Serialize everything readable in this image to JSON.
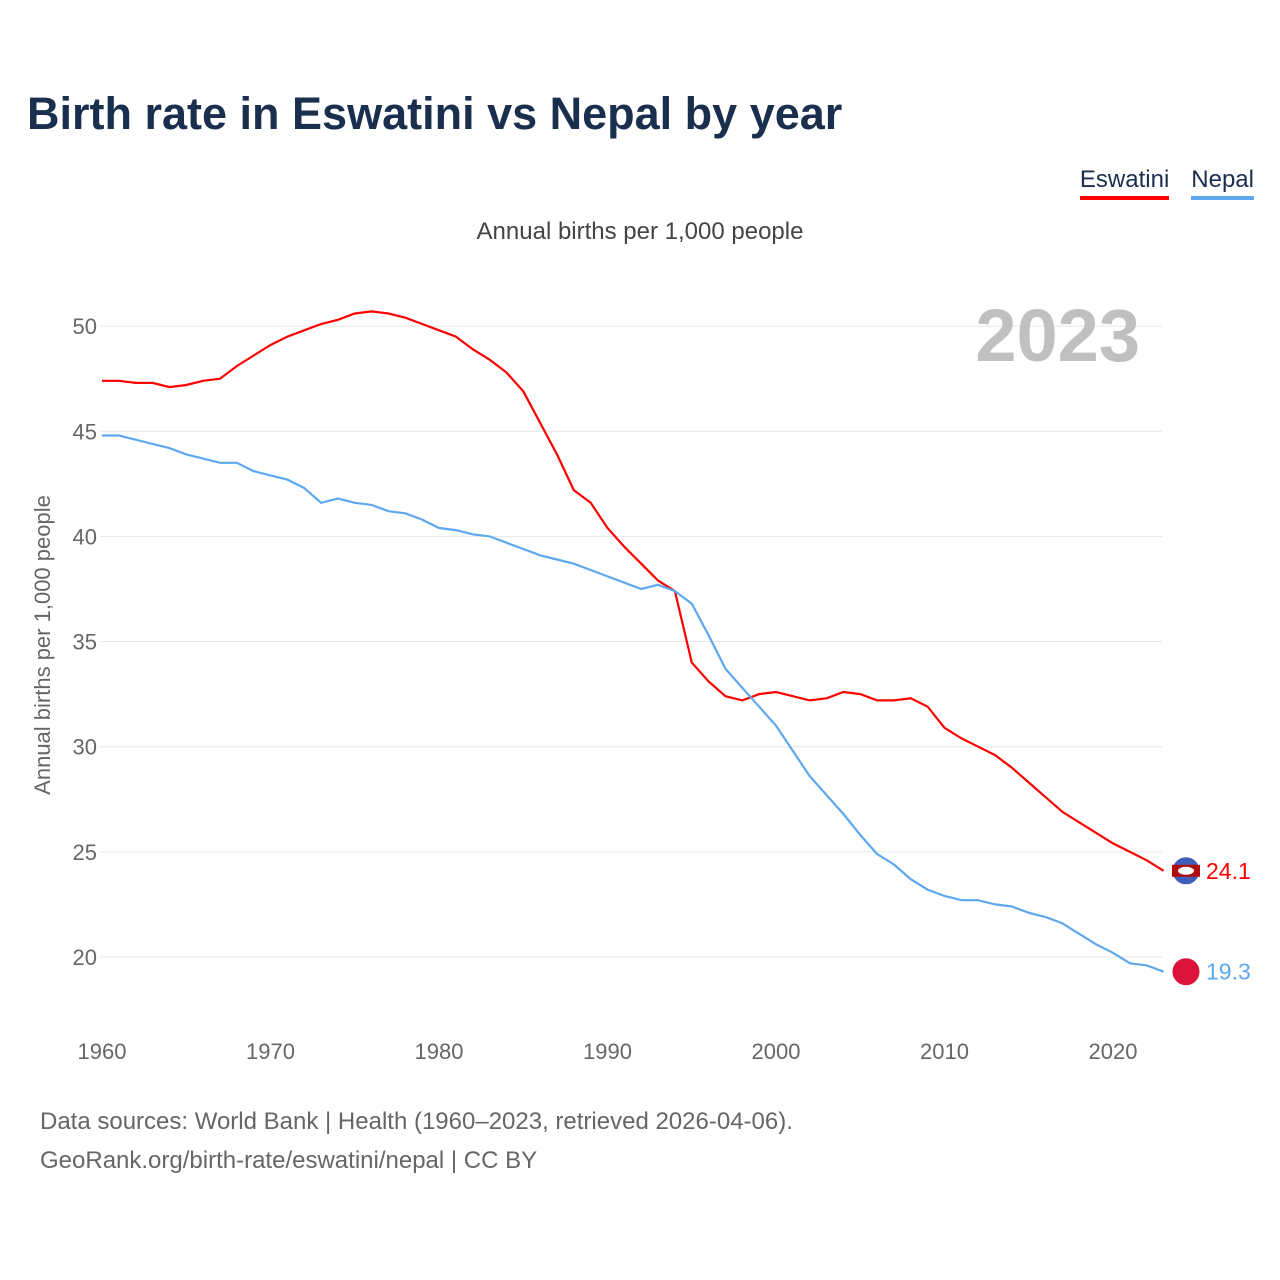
{
  "title": "Birth rate in Eswatini vs Nepal by year",
  "subtitle": "Annual births per 1,000 people",
  "source_line1": "Data sources: World Bank | Health (1960–2023, retrieved 2026-04-06).",
  "source_line2": "GeoRank.org/birth-rate/eswatini/nepal | CC BY",
  "chart_data": {
    "type": "line",
    "title": "Birth rate in Eswatini vs Nepal by year",
    "ylabel": "Annual births per 1,000 people",
    "xlabel": "",
    "year_label": "2023",
    "xlim": [
      1960,
      2023
    ],
    "ylim": [
      20,
      50
    ],
    "x_ticks": [
      1960,
      1970,
      1980,
      1990,
      2000,
      2010,
      2020
    ],
    "y_ticks": [
      20,
      25,
      30,
      35,
      40,
      45,
      50
    ],
    "grid": true,
    "legend_position": "top-right",
    "x_start": 1960,
    "series": [
      {
        "name": "Eswatini",
        "color": "#ff0000",
        "end_label": "24.1",
        "values": [
          47.4,
          47.4,
          47.3,
          47.3,
          47.1,
          47.2,
          47.4,
          47.5,
          48.1,
          48.6,
          49.1,
          49.5,
          49.8,
          50.1,
          50.3,
          50.6,
          50.7,
          50.6,
          50.4,
          50.1,
          49.8,
          49.5,
          48.9,
          48.4,
          47.8,
          46.9,
          45.4,
          43.9,
          42.2,
          41.6,
          40.4,
          39.5,
          38.7,
          37.9,
          37.4,
          34.0,
          33.1,
          32.4,
          32.2,
          32.5,
          32.6,
          32.4,
          32.2,
          32.3,
          32.6,
          32.5,
          32.2,
          32.2,
          32.3,
          31.9,
          30.9,
          30.4,
          30.0,
          29.6,
          29.0,
          28.3,
          27.6,
          26.9,
          26.4,
          25.9,
          25.4,
          25.0,
          24.6,
          24.1
        ]
      },
      {
        "name": "Nepal",
        "color": "#5ea8f0",
        "end_label": "19.3",
        "values": [
          44.8,
          44.8,
          44.6,
          44.4,
          44.2,
          43.9,
          43.7,
          43.5,
          43.5,
          43.1,
          42.9,
          42.7,
          42.3,
          41.6,
          41.8,
          41.6,
          41.5,
          41.2,
          41.1,
          40.8,
          40.4,
          40.3,
          40.1,
          40.0,
          39.7,
          39.4,
          39.1,
          38.9,
          38.7,
          38.4,
          38.1,
          37.8,
          37.5,
          37.7,
          37.4,
          36.8,
          35.3,
          33.7,
          32.8,
          31.9,
          31.0,
          29.8,
          28.6,
          27.7,
          26.8,
          25.8,
          24.9,
          24.4,
          23.7,
          23.2,
          22.9,
          22.7,
          22.7,
          22.5,
          22.4,
          22.1,
          21.9,
          21.6,
          21.1,
          20.6,
          20.2,
          19.7,
          19.6,
          19.3
        ]
      }
    ]
  }
}
